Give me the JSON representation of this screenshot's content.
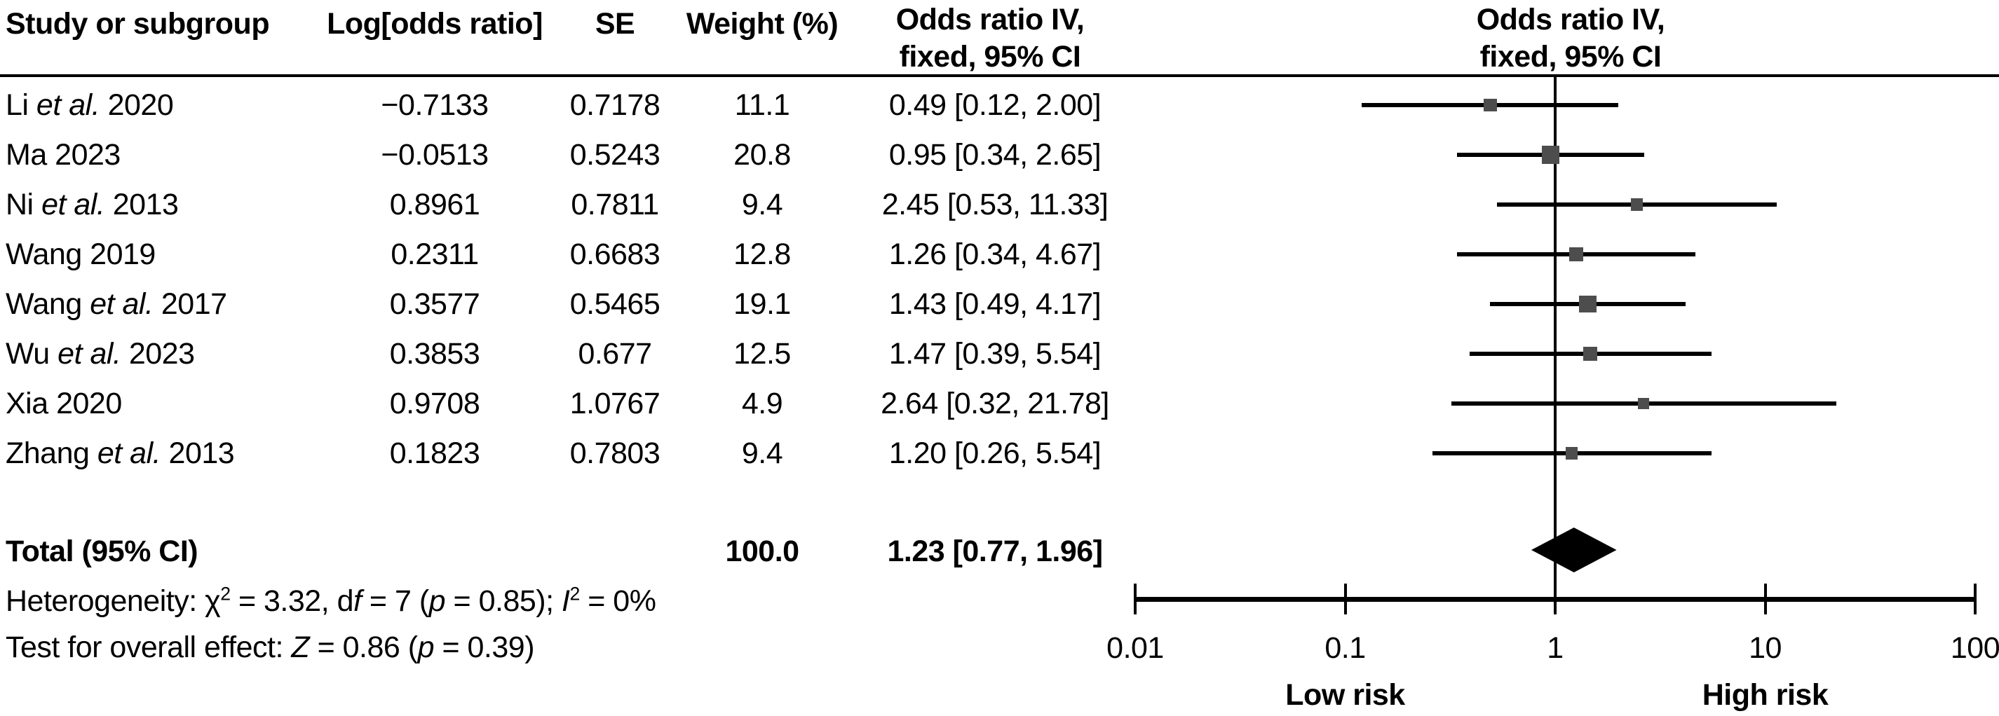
{
  "table": {
    "headers": {
      "study": "Study or subgroup",
      "log_or": "Log[odds ratio]",
      "se": "SE",
      "weight": "Weight (%)",
      "or_ci_line1": "Odds ratio IV,",
      "or_ci_line2": "fixed, 95% CI"
    }
  },
  "chart_data": {
    "type": "forest",
    "effect_measure": "Odds ratio IV, fixed, 95% CI",
    "x_axis": {
      "scale": "log10",
      "ticks": [
        0.01,
        0.1,
        1,
        10,
        100
      ],
      "tick_labels": [
        "0.01",
        "0.1",
        "1",
        "10",
        "100"
      ],
      "left_label": "Low risk",
      "right_label": "High risk"
    },
    "studies": [
      {
        "label_pre": "Li ",
        "label_italic": "et al.",
        "label_post": " 2020",
        "log_or": "−0.7133",
        "se": "0.7178",
        "weight": 11.1,
        "weight_text": "11.1",
        "or": 0.49,
        "ci_low": 0.12,
        "ci_high": 2.0,
        "or_ci_text": "0.49 [0.12, 2.00]"
      },
      {
        "label_pre": "Ma 2023",
        "label_italic": "",
        "label_post": "",
        "log_or": "−0.0513",
        "se": "0.5243",
        "weight": 20.8,
        "weight_text": "20.8",
        "or": 0.95,
        "ci_low": 0.34,
        "ci_high": 2.65,
        "or_ci_text": "0.95 [0.34, 2.65]"
      },
      {
        "label_pre": "Ni ",
        "label_italic": "et al.",
        "label_post": " 2013",
        "log_or": "0.8961",
        "se": "0.7811",
        "weight": 9.4,
        "weight_text": "9.4",
        "or": 2.45,
        "ci_low": 0.53,
        "ci_high": 11.33,
        "or_ci_text": "2.45 [0.53, 11.33]"
      },
      {
        "label_pre": "Wang 2019",
        "label_italic": "",
        "label_post": "",
        "log_or": "0.2311",
        "se": "0.6683",
        "weight": 12.8,
        "weight_text": "12.8",
        "or": 1.26,
        "ci_low": 0.34,
        "ci_high": 4.67,
        "or_ci_text": "1.26 [0.34, 4.67]"
      },
      {
        "label_pre": "Wang ",
        "label_italic": "et al.",
        "label_post": " 2017",
        "log_or": "0.3577",
        "se": "0.5465",
        "weight": 19.1,
        "weight_text": "19.1",
        "or": 1.43,
        "ci_low": 0.49,
        "ci_high": 4.17,
        "or_ci_text": "1.43 [0.49, 4.17]"
      },
      {
        "label_pre": "Wu ",
        "label_italic": "et al.",
        "label_post": " 2023",
        "log_or": "0.3853",
        "se": "0.677",
        "weight": 12.5,
        "weight_text": "12.5",
        "or": 1.47,
        "ci_low": 0.39,
        "ci_high": 5.54,
        "or_ci_text": "1.47 [0.39, 5.54]"
      },
      {
        "label_pre": "Xia 2020",
        "label_italic": "",
        "label_post": "",
        "log_or": "0.9708",
        "se": "1.0767",
        "weight": 4.9,
        "weight_text": "4.9",
        "or": 2.64,
        "ci_low": 0.32,
        "ci_high": 21.78,
        "or_ci_text": "2.64 [0.32, 21.78]"
      },
      {
        "label_pre": "Zhang ",
        "label_italic": "et al.",
        "label_post": " 2013",
        "log_or": "0.1823",
        "se": "0.7803",
        "weight": 9.4,
        "weight_text": "9.4",
        "or": 1.2,
        "ci_low": 0.26,
        "ci_high": 5.54,
        "or_ci_text": "1.20 [0.26, 5.54]"
      }
    ],
    "total": {
      "label": "Total (95% CI)",
      "weight_text": "100.0",
      "or": 1.23,
      "ci_low": 0.77,
      "ci_high": 1.96,
      "or_ci_text": "1.23 [0.77, 1.96]"
    },
    "heterogeneity_segments": [
      {
        "t": "Heterogeneity: "
      },
      {
        "t": "χ"
      },
      {
        "t": "2",
        "sup": true
      },
      {
        "t": " = 3.32, d"
      },
      {
        "t": "f",
        "i": true
      },
      {
        "t": " = 7 ("
      },
      {
        "t": "p",
        "i": true
      },
      {
        "t": " = 0.85); "
      },
      {
        "t": "I",
        "i": true
      },
      {
        "t": "2",
        "sup": true
      },
      {
        "t": " = 0%"
      }
    ],
    "overall_effect_segments": [
      {
        "t": "Test for overall effect: "
      },
      {
        "t": "Z",
        "i": true
      },
      {
        "t": " = 0.86 ("
      },
      {
        "t": "p",
        "i": true
      },
      {
        "t": " = 0.39)"
      }
    ]
  }
}
